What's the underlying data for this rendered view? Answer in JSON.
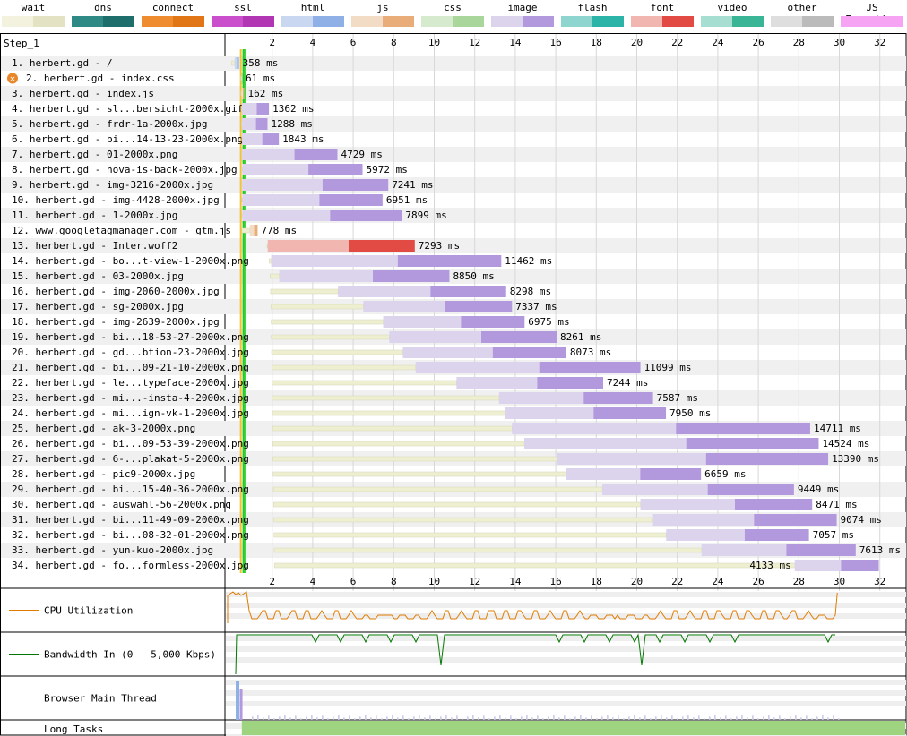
{
  "legend": [
    {
      "label": "wait",
      "c1": "#f3f2de",
      "c2": "#e3e2c2"
    },
    {
      "label": "dns",
      "c1": "#2f8a86",
      "c2": "#1e6e6b"
    },
    {
      "label": "connect",
      "c1": "#ef8c30",
      "c2": "#e07615"
    },
    {
      "label": "ssl",
      "c1": "#c94fcc",
      "c2": "#b036b3"
    },
    {
      "label": "html",
      "c1": "#c9d8f0",
      "c2": "#8fb0e6"
    },
    {
      "label": "js",
      "c1": "#f2dcc6",
      "c2": "#e8ad78"
    },
    {
      "label": "css",
      "c1": "#d6ebcd",
      "c2": "#a9d69a"
    },
    {
      "label": "image",
      "c1": "#dcd3ec",
      "c2": "#b298dc"
    },
    {
      "label": "flash",
      "c1": "#8ed4cf",
      "c2": "#2db4a9"
    },
    {
      "label": "font",
      "c1": "#f2b6b1",
      "c2": "#e24b43"
    },
    {
      "label": "video",
      "c1": "#a6dfd2",
      "c2": "#3ab596"
    },
    {
      "label": "other",
      "c1": "#dedede",
      "c2": "#bbbbbb"
    },
    {
      "label": "JS Execution",
      "c1": "#f5a3f2",
      "c2": "#f5a3f2"
    }
  ],
  "chart_data": {
    "type": "waterfall",
    "step_label": "Step_1",
    "x_axis": {
      "min": 0,
      "max": 33.2,
      "ticks": [
        2,
        4,
        6,
        8,
        10,
        12,
        14,
        16,
        18,
        20,
        22,
        24,
        26,
        28,
        30,
        32
      ],
      "unit": "s"
    },
    "requests": [
      {
        "label": "1. herbert.gd - /",
        "type": "html",
        "start": 0.0,
        "wait_end": 0.15,
        "end": 0.36,
        "duration": "358 ms",
        "failed": false,
        "label_inside": false
      },
      {
        "label": "2. herbert.gd - index.css",
        "type": "css",
        "start": 0.45,
        "wait_end": 0.49,
        "end": 0.51,
        "duration": "61 ms",
        "failed": true,
        "label_inside": false
      },
      {
        "label": "3. herbert.gd - index.js",
        "type": "js",
        "start": 0.46,
        "wait_end": 0.5,
        "end": 0.62,
        "duration": "162 ms",
        "failed": false,
        "label_inside": false
      },
      {
        "label": "4. herbert.gd - sl...bersicht-2000x.gif",
        "type": "image",
        "start": 0.48,
        "wait_end": 0.5,
        "end": 1.84,
        "duration": "1362 ms",
        "failed": false,
        "label_inside": false
      },
      {
        "label": "5. herbert.gd - frdr-1a-2000x.jpg",
        "type": "image",
        "start": 0.48,
        "wait_end": 0.5,
        "end": 1.77,
        "duration": "1288 ms",
        "failed": false,
        "label_inside": false
      },
      {
        "label": "6. herbert.gd - bi...14-13-23-2000x.png",
        "type": "image",
        "start": 0.49,
        "wait_end": 0.51,
        "end": 2.33,
        "duration": "1843 ms",
        "failed": false,
        "label_inside": false
      },
      {
        "label": "7. herbert.gd - 01-2000x.png",
        "type": "image",
        "start": 0.49,
        "wait_end": 0.51,
        "end": 5.22,
        "duration": "4729 ms",
        "failed": false,
        "label_inside": false
      },
      {
        "label": "8. herbert.gd - nova-is-back-2000x.jpg",
        "type": "image",
        "start": 0.49,
        "wait_end": 0.52,
        "end": 6.46,
        "duration": "5972 ms",
        "failed": false,
        "label_inside": false
      },
      {
        "label": "9. herbert.gd - img-3216-2000x.jpg",
        "type": "image",
        "start": 0.49,
        "wait_end": 0.52,
        "end": 7.73,
        "duration": "7241 ms",
        "failed": false,
        "label_inside": false
      },
      {
        "label": "10. herbert.gd - img-4428-2000x.jpg",
        "type": "image",
        "start": 0.5,
        "wait_end": 0.52,
        "end": 7.45,
        "duration": "6951 ms",
        "failed": false,
        "label_inside": false
      },
      {
        "label": "11. herbert.gd - 1-2000x.jpg",
        "type": "image",
        "start": 0.5,
        "wait_end": 0.53,
        "end": 8.4,
        "duration": "7899 ms",
        "failed": false,
        "label_inside": false
      },
      {
        "label": "12. www.googletagmanager.com - gtm.js",
        "type": "js",
        "start": 0.5,
        "wait_end": 0.9,
        "end": 1.28,
        "duration": "778 ms",
        "failed": false,
        "label_inside": false
      },
      {
        "label": "13. herbert.gd - Inter.woff2",
        "type": "font",
        "start": 1.75,
        "wait_end": 1.78,
        "end": 9.04,
        "duration": "7293 ms",
        "failed": false,
        "label_inside": false
      },
      {
        "label": "14. herbert.gd - bo...t-view-1-2000x.png",
        "type": "image",
        "start": 1.85,
        "wait_end": 1.95,
        "end": 13.31,
        "duration": "11462 ms",
        "failed": false,
        "label_inside": false
      },
      {
        "label": "15. herbert.gd - 03-2000x.jpg",
        "type": "image",
        "start": 1.9,
        "wait_end": 2.35,
        "end": 10.75,
        "duration": "8850 ms",
        "failed": false,
        "label_inside": false
      },
      {
        "label": "16. herbert.gd - img-2060-2000x.jpg",
        "type": "image",
        "start": 1.92,
        "wait_end": 5.25,
        "end": 13.55,
        "duration": "8298 ms",
        "failed": false,
        "label_inside": false
      },
      {
        "label": "17. herbert.gd - sg-2000x.jpg",
        "type": "image",
        "start": 1.94,
        "wait_end": 6.5,
        "end": 13.84,
        "duration": "7337 ms",
        "failed": false,
        "label_inside": false
      },
      {
        "label": "18. herbert.gd - img-2639-2000x.jpg",
        "type": "image",
        "start": 1.95,
        "wait_end": 7.48,
        "end": 14.46,
        "duration": "6975 ms",
        "failed": false,
        "label_inside": false
      },
      {
        "label": "19. herbert.gd - bi...18-53-27-2000x.png",
        "type": "image",
        "start": 1.96,
        "wait_end": 7.78,
        "end": 16.04,
        "duration": "8261 ms",
        "failed": false,
        "label_inside": false
      },
      {
        "label": "20. herbert.gd - gd...btion-23-2000x.jpg",
        "type": "image",
        "start": 1.97,
        "wait_end": 8.45,
        "end": 16.52,
        "duration": "8073 ms",
        "failed": false,
        "label_inside": false
      },
      {
        "label": "21. herbert.gd - bi...09-21-10-2000x.png",
        "type": "image",
        "start": 1.98,
        "wait_end": 9.08,
        "end": 20.18,
        "duration": "11099 ms",
        "failed": false,
        "label_inside": false
      },
      {
        "label": "22. herbert.gd - le...typeface-2000x.jpg",
        "type": "image",
        "start": 1.99,
        "wait_end": 11.1,
        "end": 18.34,
        "duration": "7244 ms",
        "failed": false,
        "label_inside": false
      },
      {
        "label": "23. herbert.gd - mi...-insta-4-2000x.jpg",
        "type": "image",
        "start": 2.0,
        "wait_end": 13.2,
        "end": 20.8,
        "duration": "7587 ms",
        "failed": false,
        "label_inside": false
      },
      {
        "label": "24. herbert.gd - mi...ign-vk-1-2000x.jpg",
        "type": "image",
        "start": 2.01,
        "wait_end": 13.5,
        "end": 21.44,
        "duration": "7950 ms",
        "failed": false,
        "label_inside": false
      },
      {
        "label": "25. herbert.gd - ak-3-2000x.png",
        "type": "image",
        "start": 2.02,
        "wait_end": 13.84,
        "end": 28.56,
        "duration": "14711 ms",
        "failed": false,
        "label_inside": false
      },
      {
        "label": "26. herbert.gd - bi...09-53-39-2000x.png",
        "type": "image",
        "start": 2.03,
        "wait_end": 14.45,
        "end": 28.98,
        "duration": "14524 ms",
        "failed": false,
        "label_inside": false
      },
      {
        "label": "27. herbert.gd - 6-...plakat-5-2000x.png",
        "type": "image",
        "start": 2.04,
        "wait_end": 16.05,
        "end": 29.45,
        "duration": "13390 ms",
        "failed": false,
        "label_inside": false
      },
      {
        "label": "28. herbert.gd - pic9-2000x.jpg",
        "type": "image",
        "start": 2.05,
        "wait_end": 16.5,
        "end": 23.17,
        "duration": "6659 ms",
        "failed": false,
        "label_inside": false
      },
      {
        "label": "29. herbert.gd - bi...15-40-36-2000x.png",
        "type": "image",
        "start": 2.06,
        "wait_end": 18.3,
        "end": 27.76,
        "duration": "9449 ms",
        "failed": false,
        "label_inside": false
      },
      {
        "label": "30. herbert.gd - auswahl-56-2000x.png",
        "type": "image",
        "start": 2.07,
        "wait_end": 20.18,
        "end": 28.66,
        "duration": "8471 ms",
        "failed": false,
        "label_inside": false
      },
      {
        "label": "31. herbert.gd - bi...11-49-09-2000x.png",
        "type": "image",
        "start": 2.08,
        "wait_end": 20.8,
        "end": 29.87,
        "duration": "9074 ms",
        "failed": false,
        "label_inside": false
      },
      {
        "label": "32. herbert.gd - bi...08-32-01-2000x.png",
        "type": "image",
        "start": 2.09,
        "wait_end": 21.45,
        "end": 28.5,
        "duration": "7057 ms",
        "failed": false,
        "label_inside": false
      },
      {
        "label": "33. herbert.gd - yun-kuo-2000x.jpg",
        "type": "image",
        "start": 2.1,
        "wait_end": 23.2,
        "end": 30.81,
        "duration": "7613 ms",
        "failed": false,
        "label_inside": false
      },
      {
        "label": "34. herbert.gd - fo...formless-2000x.jpg",
        "type": "image",
        "start": 2.11,
        "wait_end": 27.8,
        "end": 31.95,
        "duration": "4133 ms",
        "failed": false,
        "label_inside": true
      }
    ],
    "bottom_rows": [
      {
        "label": "CPU Utilization",
        "line_color": "#e07b00"
      },
      {
        "label": "Bandwidth In (0 - 5,000 Kbps)",
        "line_color": "#007700"
      },
      {
        "label": "Browser Main Thread",
        "line_color": ""
      },
      {
        "label": "Long Tasks",
        "line_color": ""
      }
    ],
    "long_tasks_color": "#9ed47f"
  }
}
